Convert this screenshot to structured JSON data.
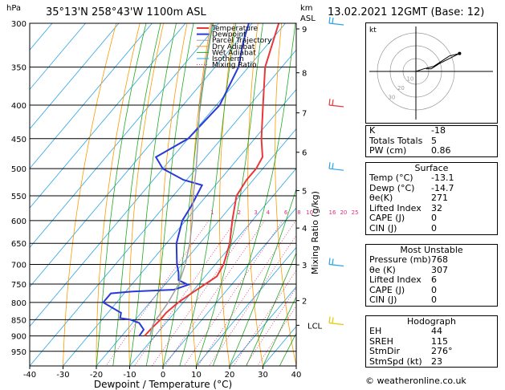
{
  "header": {
    "pressure_unit": "hPa",
    "location": "35°13'N  258°43'W  1100m  ASL",
    "height_unit": "km",
    "height_unit_sub": "ASL",
    "datetime": "13.02.2021  12GMT  (Base: 12)"
  },
  "chart_data": {
    "type": "skew-t",
    "xlabel": "Dewpoint / Temperature (°C)",
    "ylabel": "hPa",
    "y2label": "Mixing Ratio (g/kg)",
    "xlim": [
      -40,
      40
    ],
    "ylim": [
      300,
      1000
    ],
    "x_ticks": [
      "-40",
      "-30",
      "-20",
      "-10",
      "0",
      "10",
      "20",
      "30",
      "40"
    ],
    "pressure_levels": [
      300,
      350,
      400,
      450,
      500,
      550,
      600,
      650,
      700,
      750,
      800,
      850,
      900,
      950
    ],
    "km_ticks": [
      {
        "label": "9",
        "p": 306
      },
      {
        "label": "8",
        "p": 357
      },
      {
        "label": "7",
        "p": 411
      },
      {
        "label": "6",
        "p": 472
      },
      {
        "label": "5",
        "p": 540
      },
      {
        "label": "4",
        "p": 616
      },
      {
        "label": "3",
        "p": 701
      },
      {
        "label": "2",
        "p": 795
      },
      {
        "label": "LCL",
        "p": 867
      }
    ],
    "mixing_ratio_labels": [
      "1",
      "2",
      "3",
      "4",
      "6",
      "8",
      "10",
      "16",
      "20",
      "25"
    ],
    "mixing_ratio_label_p": 590,
    "legend": [
      "Temperature",
      "Dewpoint",
      "Parcel Trajectory",
      "Dry Adiabat",
      "Wet Adiabat",
      "Isotherm",
      "Mixing Ratio"
    ],
    "colors": {
      "temperature": "#e8383a",
      "dewpoint": "#2a3ad8",
      "parcel": "#a0a0a0",
      "dry_adiabat": "#ff9a00",
      "wet_adiabat": "#22aa22",
      "isotherm": "#2aa4e6",
      "mixing_ratio": "#e0307e"
    },
    "series": [
      {
        "name": "Temperature",
        "points": [
          [
            300,
            -52
          ],
          [
            350,
            -45
          ],
          [
            400,
            -36
          ],
          [
            450,
            -28
          ],
          [
            480,
            -23
          ],
          [
            500,
            -22
          ],
          [
            520,
            -22
          ],
          [
            550,
            -21
          ],
          [
            600,
            -16
          ],
          [
            650,
            -11
          ],
          [
            700,
            -7.5
          ],
          [
            730,
            -6.5
          ],
          [
            750,
            -8
          ],
          [
            770,
            -9.5
          ],
          [
            800,
            -11.5
          ],
          [
            830,
            -12.5
          ],
          [
            850,
            -12.5
          ],
          [
            880,
            -13
          ],
          [
            900,
            -13.1
          ]
        ]
      },
      {
        "name": "Dewpoint",
        "points": [
          [
            300,
            -61
          ],
          [
            320,
            -58
          ],
          [
            350,
            -53
          ],
          [
            400,
            -49
          ],
          [
            450,
            -50
          ],
          [
            480,
            -55
          ],
          [
            500,
            -50
          ],
          [
            520,
            -41
          ],
          [
            530,
            -34
          ],
          [
            550,
            -33
          ],
          [
            570,
            -32
          ],
          [
            600,
            -31
          ],
          [
            650,
            -27
          ],
          [
            700,
            -21.5
          ],
          [
            720,
            -19
          ],
          [
            740,
            -17
          ],
          [
            752,
            -13
          ],
          [
            765,
            -16
          ],
          [
            770,
            -28
          ],
          [
            775,
            -34
          ],
          [
            800,
            -34
          ],
          [
            830,
            -26
          ],
          [
            845,
            -25
          ],
          [
            850,
            -21.5
          ],
          [
            860,
            -18
          ],
          [
            880,
            -15
          ],
          [
            900,
            -14.7
          ]
        ]
      },
      {
        "name": "Parcel Trajectory",
        "points": [
          [
            300,
            -72
          ],
          [
            350,
            -63
          ],
          [
            400,
            -55
          ],
          [
            450,
            -47
          ],
          [
            500,
            -40
          ],
          [
            550,
            -34
          ],
          [
            600,
            -28
          ],
          [
            650,
            -23
          ],
          [
            700,
            -19
          ],
          [
            750,
            -16
          ],
          [
            800,
            -14.5
          ],
          [
            850,
            -13.8
          ],
          [
            867,
            -13.4
          ],
          [
            900,
            -11.5
          ]
        ]
      }
    ]
  },
  "hodograph": {
    "label": "kt",
    "rings": [
      "10",
      "20",
      "30"
    ],
    "points": [
      [
        0,
        0
      ],
      [
        6,
        2
      ],
      [
        14,
        4
      ],
      [
        26,
        12
      ],
      [
        34,
        14
      ],
      [
        18,
        6
      ],
      [
        12,
        2
      ],
      [
        8,
        2
      ]
    ]
  },
  "wind_barbs": [
    {
      "p": 300,
      "color": "#2aa4e6"
    },
    {
      "p": 400,
      "color": "#e8383a"
    },
    {
      "p": 500,
      "color": "#2aa4e6"
    },
    {
      "p": 700,
      "color": "#2aa4e6"
    },
    {
      "p": 860,
      "color": "#e6c800"
    }
  ],
  "indices": [
    {
      "label": "K",
      "value": "-18"
    },
    {
      "label": "Totals Totals",
      "value": "5"
    },
    {
      "label": "PW (cm)",
      "value": "0.86"
    }
  ],
  "surface": {
    "title": "Surface",
    "rows": [
      {
        "label": "Temp (°C)",
        "value": "-13.1"
      },
      {
        "label": "Dewp (°C)",
        "value": "-14.7"
      },
      {
        "label": "θe(K)",
        "value": "271"
      },
      {
        "label": "Lifted Index",
        "value": "32"
      },
      {
        "label": "CAPE (J)",
        "value": "0"
      },
      {
        "label": "CIN (J)",
        "value": "0"
      }
    ]
  },
  "most_unstable": {
    "title": "Most Unstable",
    "rows": [
      {
        "label": "Pressure (mb)",
        "value": "768"
      },
      {
        "label": "θe (K)",
        "value": "307"
      },
      {
        "label": "Lifted Index",
        "value": "6"
      },
      {
        "label": "CAPE (J)",
        "value": "0"
      },
      {
        "label": "CIN (J)",
        "value": "0"
      }
    ]
  },
  "hodograph_table": {
    "title": "Hodograph",
    "rows": [
      {
        "label": "EH",
        "value": "44"
      },
      {
        "label": "SREH",
        "value": "115"
      },
      {
        "label": "StmDir",
        "value": "276°"
      },
      {
        "label": "StmSpd (kt)",
        "value": "23"
      }
    ]
  },
  "footer": "© weatheronline.co.uk"
}
